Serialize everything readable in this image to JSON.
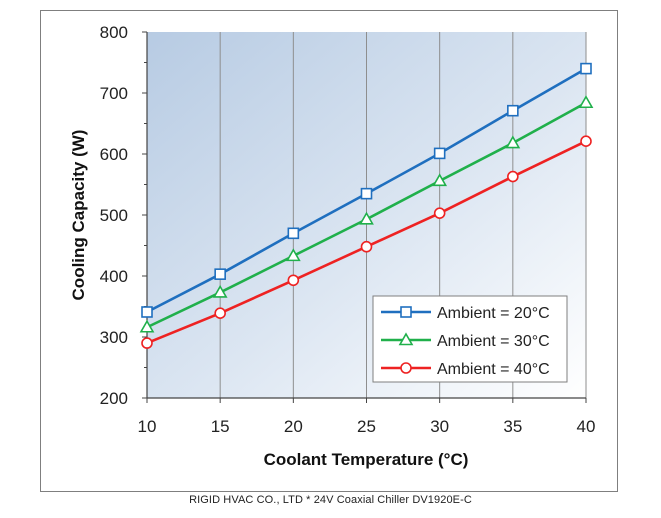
{
  "caption": "RIGID HVAC CO., LTD * 24V Coaxial Chiller DV1920E-C",
  "chart_data": {
    "type": "line",
    "title": "",
    "xlabel": "Coolant Temperature (°C)",
    "ylabel": "Cooling Capacity (W)",
    "x": [
      10,
      15,
      20,
      25,
      30,
      35,
      40
    ],
    "xticks": [
      10,
      15,
      20,
      25,
      30,
      35,
      40
    ],
    "yticks": [
      200,
      300,
      400,
      500,
      600,
      700,
      800
    ],
    "xlim": [
      10,
      40
    ],
    "ylim": [
      200,
      800
    ],
    "grid": "vertical",
    "legend_position": "bottom-right",
    "series": [
      {
        "name": "Ambient = 20°C",
        "marker": "square",
        "color": "#1f6fbf",
        "values": [
          341,
          403,
          470,
          535,
          601,
          671,
          740
        ]
      },
      {
        "name": "Ambient = 30°C",
        "marker": "triangle",
        "color": "#20b04b",
        "values": [
          316,
          373,
          433,
          493,
          556,
          618,
          684
        ]
      },
      {
        "name": "Ambient = 40°C",
        "marker": "circle",
        "color": "#ee2222",
        "values": [
          290,
          339,
          393,
          448,
          503,
          563,
          621
        ]
      }
    ]
  }
}
